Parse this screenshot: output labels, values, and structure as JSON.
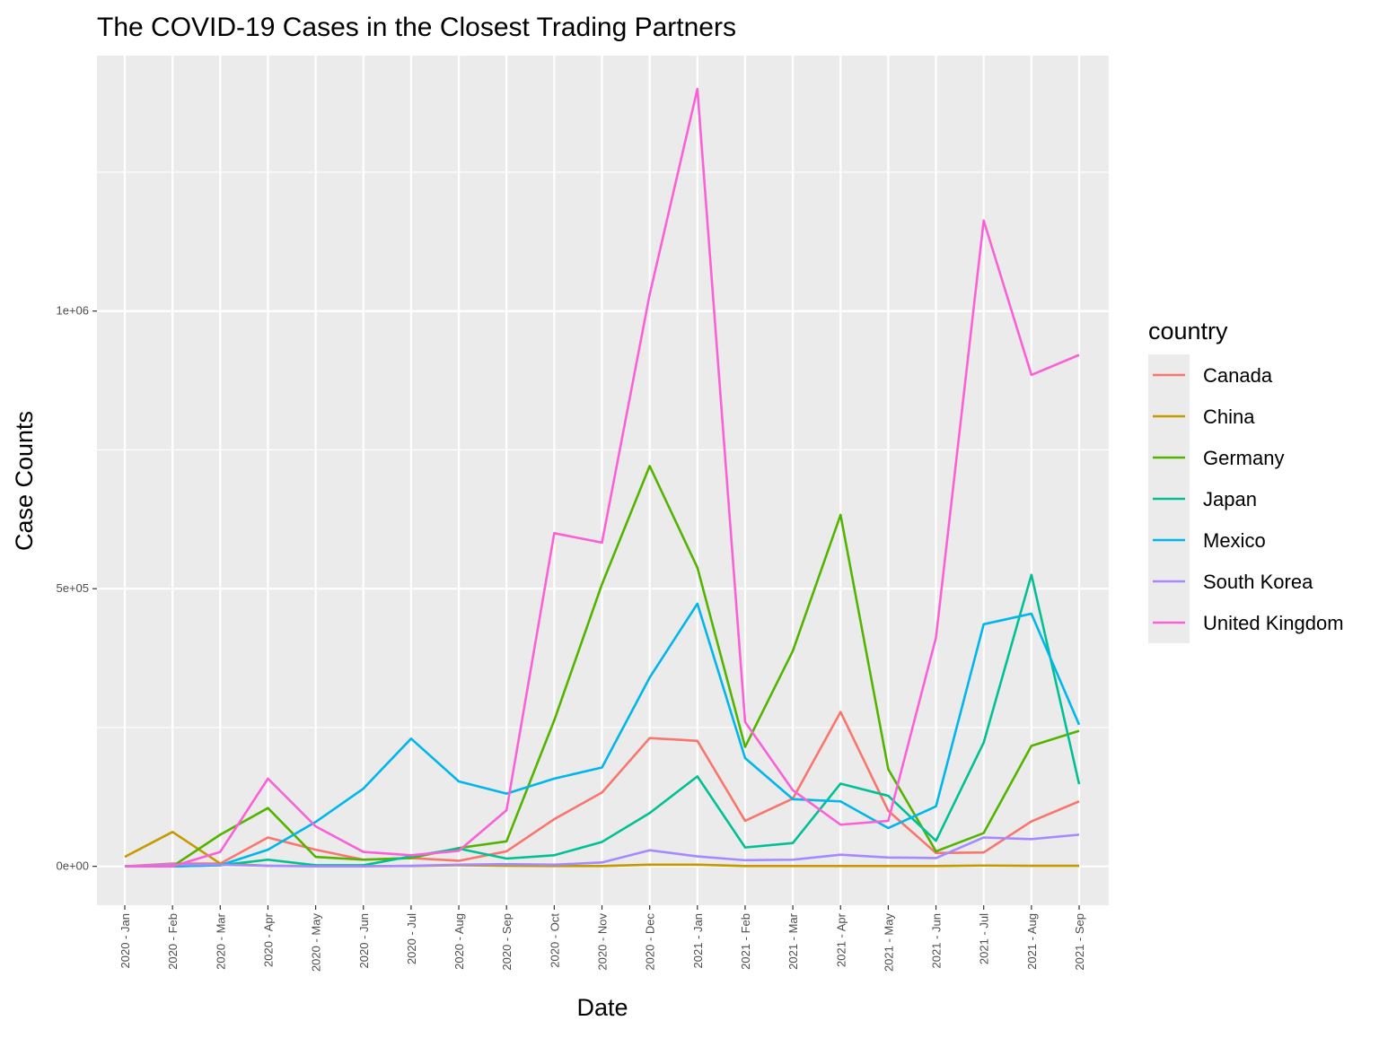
{
  "chart_data": {
    "type": "line",
    "title": "The COVID-19 Cases in the Closest Trading Partners",
    "xlabel": "Date",
    "ylabel": "Case Counts",
    "legend_title": "country",
    "legend_position": "right",
    "grid": true,
    "ylim": [
      -70000,
      1460000
    ],
    "y_ticks": [
      {
        "value": 0,
        "label": "0e+00"
      },
      {
        "value": 500000,
        "label": "5e+05"
      },
      {
        "value": 1000000,
        "label": "1e+06"
      }
    ],
    "categories": [
      "2020 - Jan",
      "2020 - Feb",
      "2020 - Mar",
      "2020 - Apr",
      "2020 - May",
      "2020 - Jun",
      "2020 - Jul",
      "2020 - Aug",
      "2020 - Sep",
      "2020 - Oct",
      "2020 - Nov",
      "2020 - Dec",
      "2021 - Jan",
      "2021 - Feb",
      "2021 - Mar",
      "2021 - Apr",
      "2021 - May",
      "2021 - Jun",
      "2021 - Jul",
      "2021 - Aug",
      "2021 - Sep"
    ],
    "series": [
      {
        "name": "Canada",
        "color": "#F8766D",
        "values": [
          0,
          5000,
          5000,
          52000,
          30000,
          12000,
          15000,
          10000,
          27000,
          85000,
          133000,
          231000,
          226000,
          82000,
          122000,
          278000,
          100000,
          24000,
          25000,
          81000,
          117000
        ]
      },
      {
        "name": "China",
        "color": "#C49A00",
        "values": [
          17000,
          62000,
          5000,
          1000,
          500,
          500,
          500,
          2000,
          1000,
          500,
          500,
          3000,
          3000,
          500,
          500,
          500,
          500,
          500,
          1500,
          1000,
          1000
        ]
      },
      {
        "name": "Germany",
        "color": "#53B400",
        "values": [
          0,
          0,
          57000,
          105000,
          17000,
          12000,
          15000,
          33000,
          45000,
          263000,
          508000,
          721000,
          538000,
          215000,
          388000,
          633000,
          175000,
          27000,
          60000,
          217000,
          244000
        ]
      },
      {
        "name": "Japan",
        "color": "#00C094",
        "values": [
          0,
          0,
          2000,
          12000,
          2000,
          2000,
          18000,
          32000,
          14000,
          20000,
          44000,
          96000,
          162000,
          34000,
          42000,
          149000,
          127000,
          46000,
          223000,
          525000,
          148000
        ]
      },
      {
        "name": "Mexico",
        "color": "#00B6EB",
        "values": [
          0,
          0,
          2000,
          30000,
          80000,
          140000,
          230000,
          153000,
          131000,
          158000,
          178000,
          340000,
          473000,
          195000,
          121000,
          117000,
          69000,
          108000,
          436000,
          455000,
          255000
        ]
      },
      {
        "name": "South Korea",
        "color": "#A58AFF",
        "values": [
          0,
          3000,
          3000,
          1000,
          0,
          0,
          1000,
          3000,
          4000,
          3000,
          7000,
          29000,
          18000,
          11000,
          12000,
          21000,
          16000,
          15000,
          52000,
          49000,
          57000
        ]
      },
      {
        "name": "United Kingdom",
        "color": "#FB61D7",
        "values": [
          0,
          0,
          26000,
          158000,
          72000,
          26000,
          20000,
          28000,
          101000,
          600000,
          583000,
          1030000,
          1400000,
          260000,
          137000,
          75000,
          82000,
          412000,
          1163000,
          885000,
          921000
        ]
      }
    ]
  }
}
